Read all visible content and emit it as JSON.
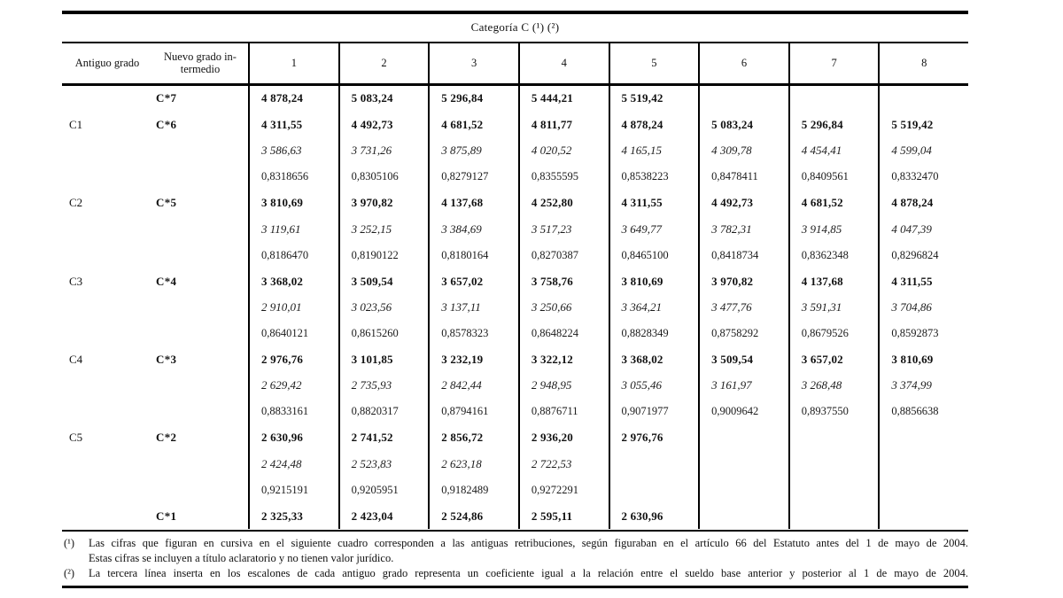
{
  "caption": "Categoría C (¹) (²)",
  "header": {
    "col_old": "Antiguo grado",
    "col_new_line1": "Nuevo grado in-",
    "col_new_line2": "termedio",
    "steps": [
      "1",
      "2",
      "3",
      "4",
      "5",
      "6",
      "7",
      "8"
    ]
  },
  "table": {
    "rows": [
      {
        "old": "",
        "new": "C*7",
        "style": "bold",
        "values": [
          "4 878,24",
          "5 083,24",
          "5 296,84",
          "5 444,21",
          "5 519,42",
          "",
          "",
          ""
        ]
      },
      {
        "old": "C1",
        "new": "C*6",
        "style": "bold",
        "values": [
          "4 311,55",
          "4 492,73",
          "4 681,52",
          "4 811,77",
          "4 878,24",
          "5 083,24",
          "5 296,84",
          "5 519,42"
        ]
      },
      {
        "old": "",
        "new": "",
        "style": "italic",
        "values": [
          "3 586,63",
          "3 731,26",
          "3 875,89",
          "4 020,52",
          "4 165,15",
          "4 309,78",
          "4 454,41",
          "4 599,04"
        ]
      },
      {
        "old": "",
        "new": "",
        "style": "coef",
        "values": [
          "0,8318656",
          "0,8305106",
          "0,8279127",
          "0,8355595",
          "0,8538223",
          "0,8478411",
          "0,8409561",
          "0,8332470"
        ]
      },
      {
        "old": "C2",
        "new": "C*5",
        "style": "bold",
        "values": [
          "3 810,69",
          "3 970,82",
          "4 137,68",
          "4 252,80",
          "4 311,55",
          "4 492,73",
          "4 681,52",
          "4 878,24"
        ]
      },
      {
        "old": "",
        "new": "",
        "style": "italic",
        "values": [
          "3 119,61",
          "3 252,15",
          "3 384,69",
          "3 517,23",
          "3 649,77",
          "3 782,31",
          "3 914,85",
          "4 047,39"
        ]
      },
      {
        "old": "",
        "new": "",
        "style": "coef",
        "values": [
          "0,8186470",
          "0,8190122",
          "0,8180164",
          "0,8270387",
          "0,8465100",
          "0,8418734",
          "0,8362348",
          "0,8296824"
        ]
      },
      {
        "old": "C3",
        "new": "C*4",
        "style": "bold",
        "values": [
          "3 368,02",
          "3 509,54",
          "3 657,02",
          "3 758,76",
          "3 810,69",
          "3 970,82",
          "4 137,68",
          "4 311,55"
        ]
      },
      {
        "old": "",
        "new": "",
        "style": "italic",
        "values": [
          "2 910,01",
          "3 023,56",
          "3 137,11",
          "3 250,66",
          "3 364,21",
          "3 477,76",
          "3 591,31",
          "3 704,86"
        ]
      },
      {
        "old": "",
        "new": "",
        "style": "coef",
        "values": [
          "0,8640121",
          "0,8615260",
          "0,8578323",
          "0,8648224",
          "0,8828349",
          "0,8758292",
          "0,8679526",
          "0,8592873"
        ]
      },
      {
        "old": "C4",
        "new": "C*3",
        "style": "bold",
        "values": [
          "2 976,76",
          "3 101,85",
          "3 232,19",
          "3 322,12",
          "3 368,02",
          "3 509,54",
          "3 657,02",
          "3 810,69"
        ]
      },
      {
        "old": "",
        "new": "",
        "style": "italic",
        "values": [
          "2 629,42",
          "2 735,93",
          "2 842,44",
          "2 948,95",
          "3 055,46",
          "3 161,97",
          "3 268,48",
          "3 374,99"
        ]
      },
      {
        "old": "",
        "new": "",
        "style": "coef",
        "values": [
          "0,8833161",
          "0,8820317",
          "0,8794161",
          "0,8876711",
          "0,9071977",
          "0,9009642",
          "0,8937550",
          "0,8856638"
        ]
      },
      {
        "old": "C5",
        "new": "C*2",
        "style": "bold",
        "values": [
          "2 630,96",
          "2 741,52",
          "2 856,72",
          "2 936,20",
          "2 976,76",
          "",
          "",
          ""
        ]
      },
      {
        "old": "",
        "new": "",
        "style": "italic",
        "values": [
          "2 424,48",
          "2 523,83",
          "2 623,18",
          "2 722,53",
          "",
          "",
          "",
          ""
        ]
      },
      {
        "old": "",
        "new": "",
        "style": "coef",
        "values": [
          "0,9215191",
          "0,9205951",
          "0,9182489",
          "0,9272291",
          "",
          "",
          "",
          ""
        ]
      },
      {
        "old": "",
        "new": "C*1",
        "style": "bold",
        "values": [
          "2 325,33",
          "2 423,04",
          "2 524,86",
          "2 595,11",
          "2 630,96",
          "",
          "",
          ""
        ]
      }
    ]
  },
  "footnotes": [
    {
      "marker": "(¹)",
      "lines": [
        {
          "text": "Las cifras que figuran en cursiva en el siguiente cuadro corresponden a las antiguas retribuciones, según figuraban en el artículo 66 del Estatuto antes del 1 de mayo de 2004.",
          "fill": true
        },
        {
          "text": "Estas cifras se incluyen a título aclaratorio y no tienen valor jurídico.",
          "fill": false
        }
      ]
    },
    {
      "marker": "(²)",
      "lines": [
        {
          "text": "La tercera línea inserta en los escalones de cada antiguo grado representa un coeficiente igual a la relación entre el sueldo base anterior y posterior al 1 de mayo de 2004.",
          "fill": true
        }
      ]
    }
  ]
}
